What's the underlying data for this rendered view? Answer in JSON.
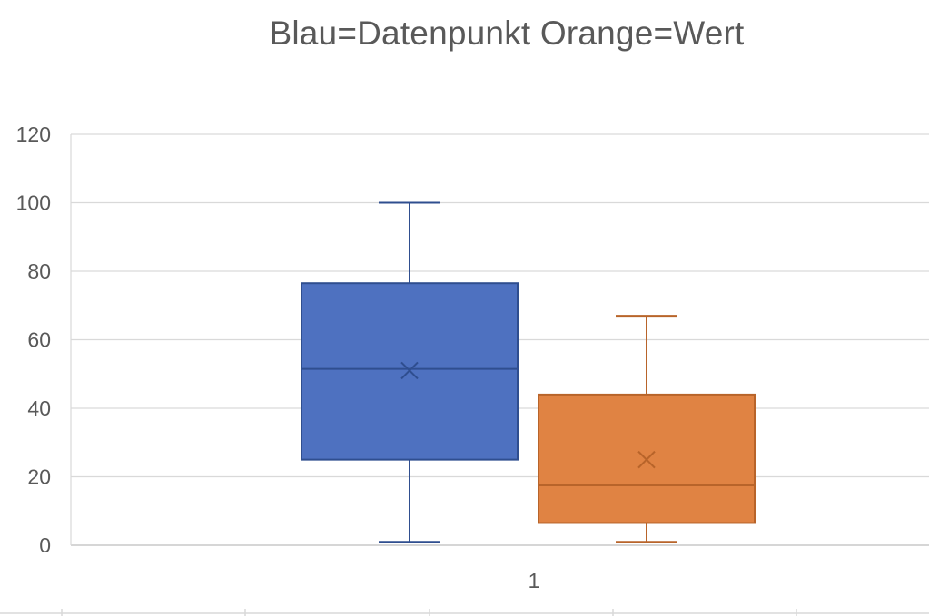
{
  "chart_data": {
    "type": "boxplot",
    "title": "Blau=Datenpunkt Orange=Wert",
    "xlabel": "",
    "ylabel": "",
    "categories": [
      "1"
    ],
    "ylim": [
      0,
      120
    ],
    "yticks": [
      0,
      20,
      40,
      60,
      80,
      100,
      120
    ],
    "grid": true,
    "series": [
      {
        "color": "#4E71C0",
        "stroke": "#2F4E8F",
        "min": 1,
        "q1": 25,
        "median": 51.5,
        "q3": 76.5,
        "max": 100,
        "mean": 51
      },
      {
        "color": "#E08343",
        "stroke": "#B8642A",
        "min": 1,
        "q1": 6.5,
        "median": 17.5,
        "q3": 44,
        "max": 67,
        "mean": 25
      }
    ]
  }
}
